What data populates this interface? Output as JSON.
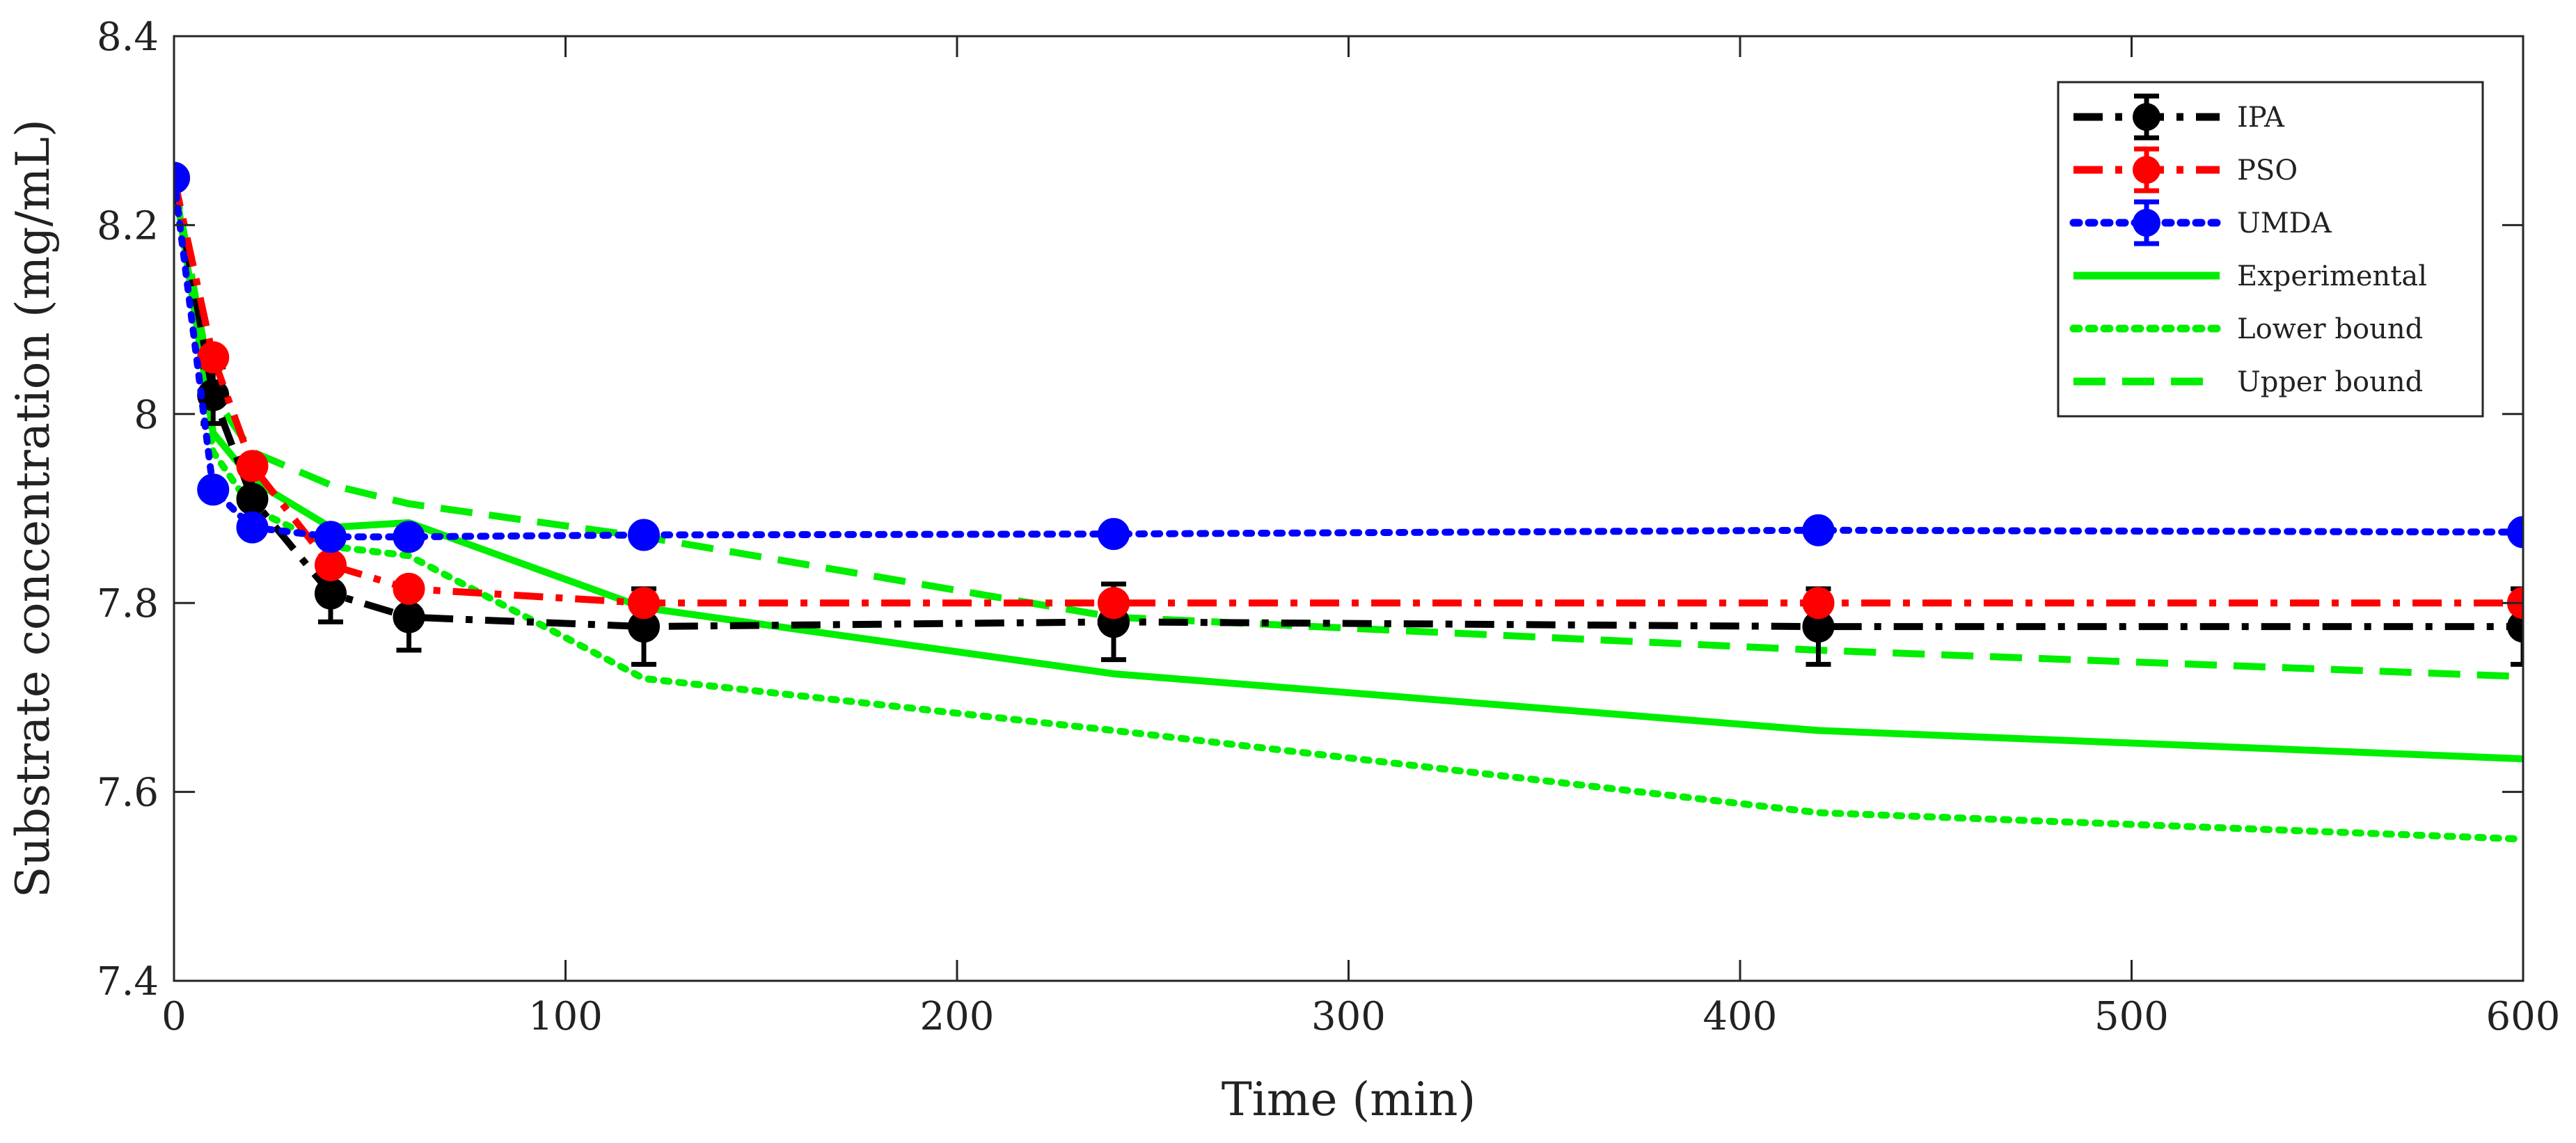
{
  "chart_data": {
    "type": "line",
    "title": "",
    "xlabel": "Time (min)",
    "ylabel": "Substrate concentration (mg/mL)",
    "xlim": [
      0,
      600
    ],
    "ylim": [
      7.4,
      8.4
    ],
    "x_ticks": [
      0,
      100,
      200,
      300,
      400,
      500,
      600
    ],
    "x_tick_labels": [
      "0",
      "100",
      "200",
      "300",
      "400",
      "500",
      "600"
    ],
    "y_ticks": [
      7.4,
      7.6,
      7.8,
      8.0,
      8.2,
      8.4
    ],
    "y_tick_labels": [
      "7.4",
      "7.6",
      "7.8",
      "8",
      "8.2",
      "8.4"
    ],
    "grid": false,
    "legend_position": "top-right",
    "series": [
      {
        "name": "IPA",
        "color": "#000000",
        "line_style": "dashdot",
        "marker": "circle",
        "x": [
          0,
          10,
          20,
          40,
          60,
          120,
          240,
          420,
          600
        ],
        "y": [
          8.25,
          8.02,
          7.91,
          7.81,
          7.785,
          7.775,
          7.78,
          7.775,
          7.775
        ],
        "error": [
          0,
          0.03,
          0.03,
          0.03,
          0.035,
          0.04,
          0.04,
          0.04,
          0.04
        ]
      },
      {
        "name": "PSO",
        "color": "#ff0000",
        "line_style": "dashdot",
        "marker": "circle",
        "x": [
          0,
          10,
          20,
          40,
          60,
          120,
          240,
          420,
          600
        ],
        "y": [
          8.25,
          8.06,
          7.945,
          7.84,
          7.815,
          7.8,
          7.8,
          7.8,
          7.8
        ],
        "error": [
          0,
          0,
          0,
          0,
          0,
          0,
          0,
          0,
          0
        ]
      },
      {
        "name": "UMDA",
        "color": "#0000ff",
        "line_style": "dotted",
        "marker": "circle",
        "x": [
          0,
          10,
          20,
          40,
          60,
          120,
          240,
          420,
          600
        ],
        "y": [
          8.25,
          7.92,
          7.88,
          7.87,
          7.87,
          7.872,
          7.873,
          7.877,
          7.875
        ],
        "error": [
          0,
          0,
          0,
          0,
          0,
          0,
          0,
          0,
          0
        ]
      },
      {
        "name": "Experimental",
        "color": "#00ee00",
        "line_style": "solid",
        "marker": "none",
        "x": [
          0,
          10,
          20,
          40,
          60,
          120,
          240,
          420,
          600
        ],
        "y": [
          8.25,
          7.98,
          7.93,
          7.88,
          7.885,
          7.795,
          7.725,
          7.665,
          7.635
        ]
      },
      {
        "name": "Lower bound",
        "color": "#00ee00",
        "line_style": "dotted",
        "marker": "none",
        "x": [
          0,
          10,
          20,
          40,
          60,
          120,
          240,
          420,
          600
        ],
        "y": [
          8.25,
          7.96,
          7.9,
          7.86,
          7.85,
          7.72,
          7.665,
          7.578,
          7.55
        ]
      },
      {
        "name": "Upper bound",
        "color": "#00ee00",
        "line_style": "dashed",
        "marker": "none",
        "x": [
          0,
          10,
          20,
          40,
          60,
          120,
          240,
          420,
          600
        ],
        "y": [
          8.25,
          8.02,
          7.96,
          7.925,
          7.905,
          7.87,
          7.785,
          7.75,
          7.722
        ]
      }
    ]
  }
}
